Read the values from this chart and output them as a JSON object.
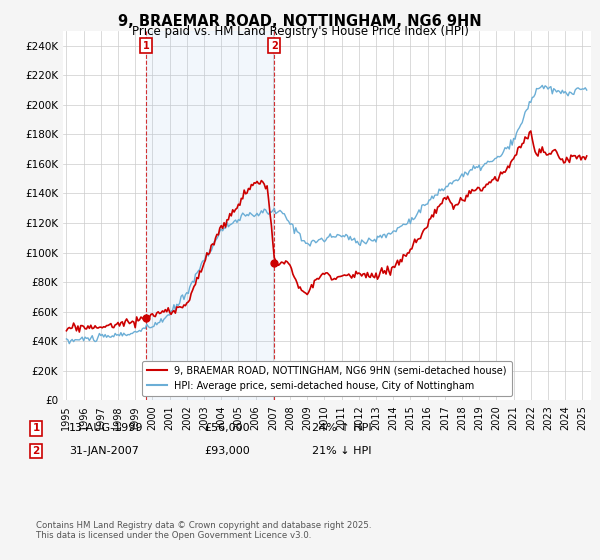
{
  "title": "9, BRAEMAR ROAD, NOTTINGHAM, NG6 9HN",
  "subtitle": "Price paid vs. HM Land Registry's House Price Index (HPI)",
  "ylabel_ticks": [
    "£0",
    "£20K",
    "£40K",
    "£60K",
    "£80K",
    "£100K",
    "£120K",
    "£140K",
    "£160K",
    "£180K",
    "£200K",
    "£220K",
    "£240K"
  ],
  "ytick_values": [
    0,
    20000,
    40000,
    60000,
    80000,
    100000,
    120000,
    140000,
    160000,
    180000,
    200000,
    220000,
    240000
  ],
  "ylim": [
    0,
    250000
  ],
  "xlim": [
    1994.5,
    2025.5
  ],
  "legend_entries": [
    "9, BRAEMAR ROAD, NOTTINGHAM, NG6 9HN (semi-detached house)",
    "HPI: Average price, semi-detached house, City of Nottingham"
  ],
  "legend_colors": [
    "#cc0000",
    "#6baed6"
  ],
  "ann1_x": 1999.62,
  "ann1_y": 56000,
  "ann2_x": 2007.08,
  "ann2_y": 93000,
  "shade_color": "#ddeeff",
  "footnote": "Contains HM Land Registry data © Crown copyright and database right 2025.\nThis data is licensed under the Open Government Licence v3.0.",
  "background_color": "#f5f5f5",
  "plot_bg_color": "#ffffff",
  "grid_color": "#cccccc",
  "line1_color": "#cc0000",
  "line2_color": "#6baed6",
  "ann_box_color": "#cc0000"
}
